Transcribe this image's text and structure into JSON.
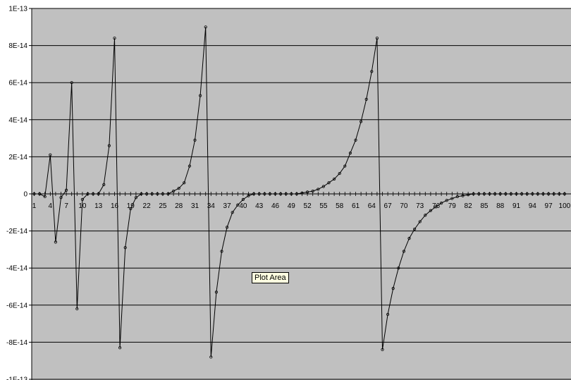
{
  "tooltip": "Plot Area",
  "chart_data": {
    "type": "line",
    "title": "",
    "xlabel": "",
    "ylabel": "",
    "ylim": [
      -1e-13,
      1e-13
    ],
    "ytick_values": [
      1e-13,
      8e-14,
      6e-14,
      4e-14,
      2e-14,
      0,
      -2e-14,
      -4e-14,
      -6e-14,
      -8e-14,
      -1e-13
    ],
    "ytick_labels": [
      "1E-13",
      "8E-14",
      "6E-14",
      "4E-14",
      "2E-14",
      "0",
      "-2E-14",
      "-4E-14",
      "-6E-14",
      "-8E-14",
      "-1E-13"
    ],
    "xtick_labels": [
      "1",
      "4",
      "7",
      "10",
      "13",
      "16",
      "19",
      "22",
      "25",
      "28",
      "31",
      "34",
      "37",
      "40",
      "43",
      "46",
      "49",
      "52",
      "55",
      "58",
      "61",
      "64",
      "67",
      "70",
      "73",
      "76",
      "79",
      "82",
      "85",
      "88",
      "91",
      "94",
      "97",
      "100"
    ],
    "grid": true,
    "legend": "none",
    "colors": {
      "plot_bg": "#c0c0c0",
      "line": "#000000",
      "gridline": "#000000"
    },
    "series": [
      {
        "x": [
          1,
          2,
          3,
          4,
          5,
          6,
          7,
          8,
          9,
          10,
          11,
          12,
          13,
          14,
          15,
          16,
          17,
          18,
          19,
          20,
          21,
          22,
          23,
          24,
          25,
          26,
          27,
          28,
          29,
          30,
          31,
          32,
          33,
          34,
          35,
          36,
          37,
          38,
          39,
          40,
          41,
          42,
          43,
          44,
          45,
          46,
          47,
          48,
          49,
          50,
          51,
          52,
          53,
          54,
          55,
          56,
          57,
          58,
          59,
          60,
          61,
          62,
          63,
          64,
          65,
          66,
          67,
          68,
          69,
          70,
          71,
          72,
          73,
          74,
          75,
          76,
          77,
          78,
          79,
          80,
          81,
          82,
          83,
          84,
          85,
          86,
          87,
          88,
          89,
          90,
          91,
          92,
          93,
          94,
          95,
          96,
          97,
          98,
          99,
          100
        ],
        "values": [
          0,
          0,
          -1.5e-15,
          2.1e-14,
          -2.6e-14,
          -2e-15,
          2e-15,
          6e-14,
          -6.2e-14,
          -3e-15,
          0,
          0,
          0,
          5e-15,
          2.6e-14,
          8.4e-14,
          -8.3e-14,
          -2.9e-14,
          -8e-15,
          -2e-15,
          0,
          0,
          0,
          0,
          0,
          0,
          1.5e-15,
          3e-15,
          6e-15,
          1.5e-14,
          2.9e-14,
          5.3e-14,
          9e-14,
          -8.8e-14,
          -5.3e-14,
          -3.1e-14,
          -1.8e-14,
          -1e-14,
          -6e-15,
          -3e-15,
          -1e-15,
          0,
          0,
          0,
          0,
          0,
          0,
          0,
          0,
          0,
          5e-16,
          1e-15,
          1.5e-15,
          2.5e-15,
          4e-15,
          6e-15,
          8e-15,
          1.1e-14,
          1.5e-14,
          2.2e-14,
          2.9e-14,
          3.9e-14,
          5.1e-14,
          6.6e-14,
          8.4e-14,
          -8.4e-14,
          -6.5e-14,
          -5.1e-14,
          -4e-14,
          -3.1e-14,
          -2.4e-14,
          -1.9e-14,
          -1.5e-14,
          -1.15e-14,
          -9e-15,
          -7e-15,
          -5e-15,
          -3.5e-15,
          -2.5e-15,
          -1.5e-15,
          -1e-15,
          -5e-16,
          0,
          0,
          0,
          0,
          0,
          0,
          0,
          0,
          0,
          0,
          0,
          0,
          0,
          0,
          0,
          0,
          0,
          0
        ]
      }
    ]
  }
}
